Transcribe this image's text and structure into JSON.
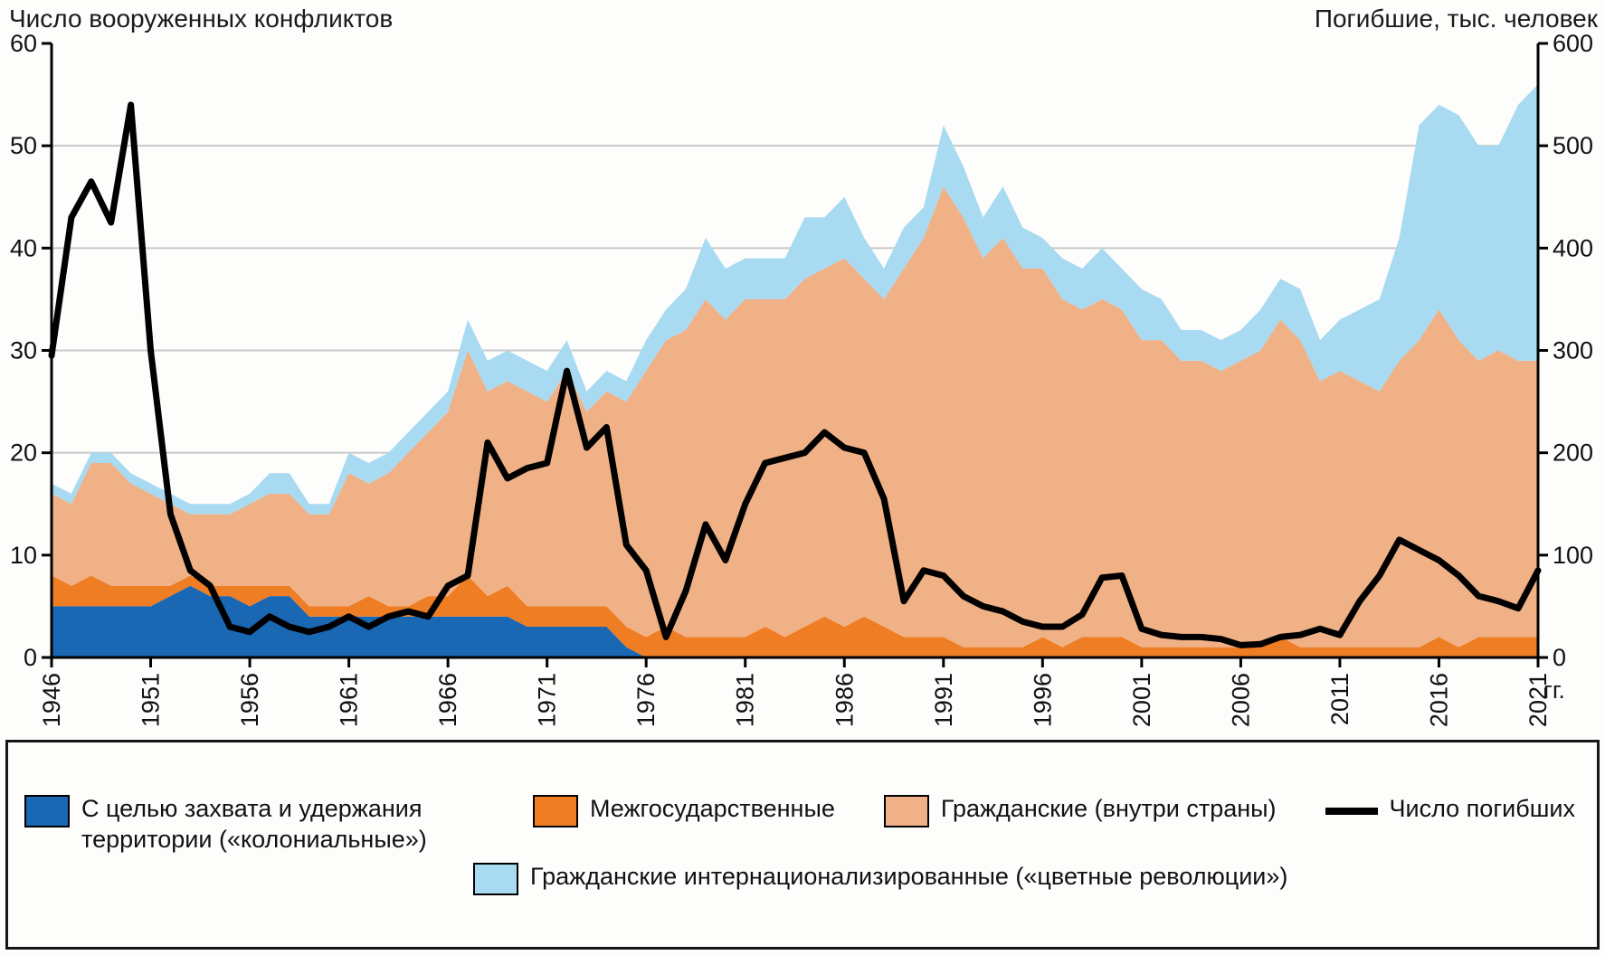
{
  "chart_data": {
    "type": "area",
    "stacked": true,
    "grid": "horizontal",
    "legend_position": "bottom",
    "x": [
      1946,
      1947,
      1948,
      1949,
      1950,
      1951,
      1952,
      1953,
      1954,
      1955,
      1956,
      1957,
      1958,
      1959,
      1960,
      1961,
      1962,
      1963,
      1964,
      1965,
      1966,
      1967,
      1968,
      1969,
      1970,
      1971,
      1972,
      1973,
      1974,
      1975,
      1976,
      1977,
      1978,
      1979,
      1980,
      1981,
      1982,
      1983,
      1984,
      1985,
      1986,
      1987,
      1988,
      1989,
      1990,
      1991,
      1992,
      1993,
      1994,
      1995,
      1996,
      1997,
      1998,
      1999,
      2000,
      2001,
      2002,
      2003,
      2004,
      2005,
      2006,
      2007,
      2008,
      2009,
      2010,
      2011,
      2012,
      2013,
      2014,
      2015,
      2016,
      2017,
      2018,
      2019,
      2020,
      2021
    ],
    "series": [
      {
        "name": "С целью захвата и удержания территории («колониальные»)",
        "color": "#1a67b4",
        "axis": "left",
        "values": [
          5,
          5,
          5,
          5,
          5,
          5,
          6,
          7,
          6,
          6,
          5,
          6,
          6,
          4,
          4,
          4,
          4,
          4,
          4,
          4,
          4,
          4,
          4,
          4,
          3,
          3,
          3,
          3,
          3,
          1,
          0,
          0,
          0,
          0,
          0,
          0,
          0,
          0,
          0,
          0,
          0,
          0,
          0,
          0,
          0,
          0,
          0,
          0,
          0,
          0,
          0,
          0,
          0,
          0,
          0,
          0,
          0,
          0,
          0,
          0,
          0,
          0,
          0,
          0,
          0,
          0,
          0,
          0,
          0,
          0,
          0,
          0,
          0,
          0,
          0,
          0
        ]
      },
      {
        "name": "Межгосударственные",
        "color": "#ee7d23",
        "axis": "left",
        "values": [
          3,
          2,
          3,
          2,
          2,
          2,
          1,
          1,
          1,
          1,
          2,
          1,
          1,
          1,
          1,
          1,
          2,
          1,
          1,
          2,
          2,
          4,
          2,
          3,
          2,
          2,
          2,
          2,
          2,
          2,
          2,
          3,
          2,
          2,
          2,
          2,
          3,
          2,
          3,
          4,
          3,
          4,
          3,
          2,
          2,
          2,
          1,
          1,
          1,
          1,
          2,
          1,
          2,
          2,
          2,
          1,
          1,
          1,
          1,
          1,
          1,
          1,
          2,
          1,
          1,
          1,
          1,
          1,
          1,
          1,
          2,
          1,
          2,
          2,
          2,
          2
        ]
      },
      {
        "name": "Гражданские (внутри страны)",
        "color": "#f0b186",
        "axis": "left",
        "values": [
          8,
          8,
          11,
          12,
          10,
          9,
          8,
          6,
          7,
          7,
          8,
          9,
          9,
          9,
          9,
          13,
          11,
          13,
          15,
          16,
          18,
          22,
          20,
          20,
          21,
          20,
          23,
          19,
          21,
          22,
          26,
          28,
          30,
          33,
          31,
          33,
          32,
          33,
          34,
          34,
          36,
          33,
          32,
          36,
          39,
          44,
          42,
          38,
          40,
          37,
          36,
          34,
          32,
          33,
          32,
          30,
          30,
          28,
          28,
          27,
          28,
          29,
          31,
          30,
          26,
          27,
          26,
          25,
          28,
          30,
          32,
          30,
          27,
          28,
          27,
          27
        ]
      },
      {
        "name": "Гражданские интернационализированные («цветные революции»)",
        "color": "#a8daf2",
        "axis": "left",
        "values": [
          1,
          1,
          1,
          1,
          1,
          1,
          1,
          1,
          1,
          1,
          1,
          2,
          2,
          1,
          1,
          2,
          2,
          2,
          2,
          2,
          2,
          3,
          3,
          3,
          3,
          3,
          3,
          2,
          2,
          2,
          3,
          3,
          4,
          6,
          5,
          4,
          4,
          4,
          6,
          5,
          6,
          4,
          3,
          4,
          3,
          6,
          5,
          4,
          5,
          4,
          3,
          4,
          4,
          5,
          4,
          5,
          4,
          3,
          3,
          3,
          3,
          4,
          4,
          5,
          4,
          5,
          7,
          9,
          12,
          21,
          20,
          22,
          21,
          20,
          25,
          27
        ]
      }
    ],
    "line": {
      "name": "Число погибших",
      "color": "#000000",
      "axis": "right",
      "values": [
        295,
        430,
        465,
        425,
        540,
        300,
        140,
        85,
        70,
        30,
        25,
        40,
        30,
        25,
        30,
        40,
        30,
        40,
        45,
        40,
        70,
        80,
        210,
        175,
        185,
        190,
        280,
        205,
        225,
        110,
        85,
        20,
        65,
        130,
        95,
        150,
        190,
        195,
        200,
        220,
        205,
        200,
        155,
        55,
        85,
        80,
        60,
        50,
        45,
        35,
        30,
        30,
        42,
        78,
        80,
        28,
        22,
        20,
        20,
        18,
        12,
        13,
        20,
        22,
        28,
        22,
        55,
        80,
        115,
        105,
        95,
        80,
        60,
        55,
        48,
        85
      ]
    },
    "left_axis": {
      "title": "Число вооруженных конфликтов",
      "min": 0,
      "max": 60,
      "ticks": [
        0,
        10,
        20,
        30,
        40,
        50,
        60
      ]
    },
    "right_axis": {
      "title": "Погибшие, тыс. человек",
      "min": 0,
      "max": 600,
      "ticks": [
        0,
        100,
        200,
        300,
        400,
        500,
        600
      ]
    },
    "x_axis": {
      "tick_years": [
        1946,
        1951,
        1956,
        1961,
        1966,
        1971,
        1976,
        1981,
        1986,
        1991,
        1996,
        2001,
        2006,
        2011,
        2016,
        2021
      ],
      "unit_label": "гг."
    },
    "style": {
      "grid_color": "#c9c9c9",
      "axis_color": "#000000",
      "line_width": 7
    }
  }
}
